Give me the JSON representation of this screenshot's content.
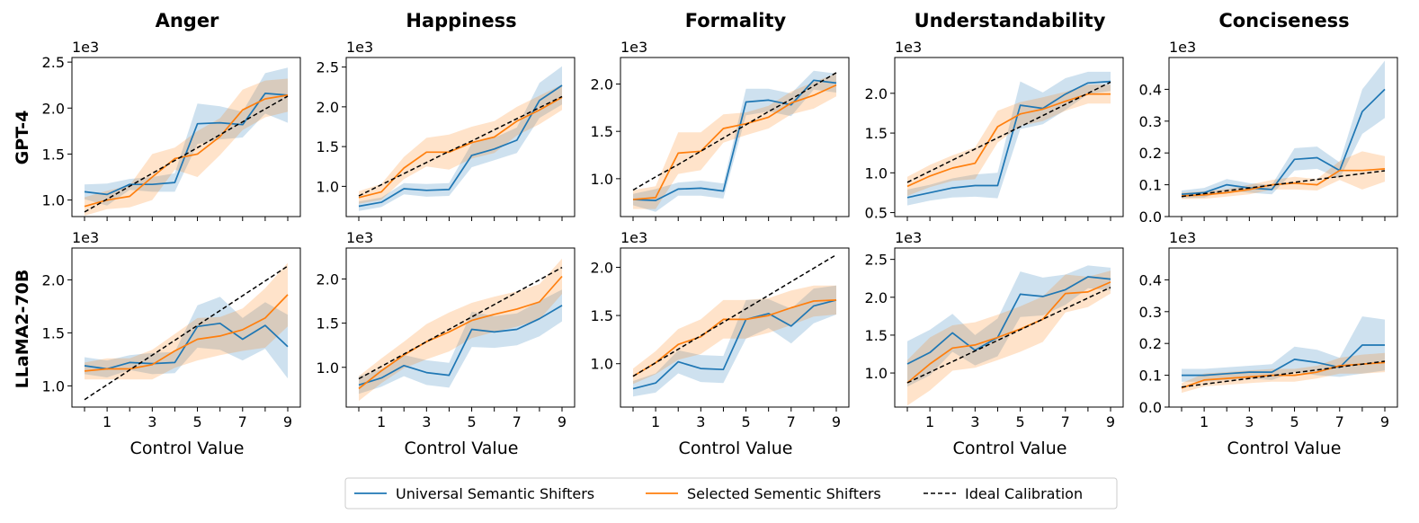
{
  "chart_data": {
    "type": "line",
    "columns": [
      "Anger",
      "Happiness",
      "Formality",
      "Understandability",
      "Conciseness"
    ],
    "rows": [
      "GPT-4",
      "LLaMA2-70B"
    ],
    "x": [
      0,
      1,
      2,
      3,
      4,
      5,
      6,
      7,
      8,
      9
    ],
    "xticks": [
      "1",
      "3",
      "5",
      "7",
      "9"
    ],
    "xlabel": "Control Value",
    "yscale_label": "1e3",
    "colors": {
      "universal": "#1f77b4",
      "selected": "#ff7f0e",
      "ideal": "#000000"
    },
    "legend": {
      "position": "bottom-center",
      "entries": [
        "Universal Semantic Shifters",
        "Selected Sementic Shifters",
        "Ideal Calibration"
      ]
    },
    "panels": [
      {
        "row": "GPT-4",
        "column": "Anger",
        "ylim": [
          0.82,
          2.55
        ],
        "yticks": [
          "1.0",
          "1.5",
          "2.0",
          "2.5"
        ],
        "universal": [
          1.09,
          1.06,
          1.17,
          1.17,
          1.19,
          1.83,
          1.84,
          1.82,
          2.16,
          2.14
        ],
        "universal_band": [
          0.08,
          0.12,
          0.06,
          0.08,
          0.1,
          0.22,
          0.18,
          0.14,
          0.22,
          0.3
        ],
        "selected": [
          0.93,
          1.0,
          1.04,
          1.25,
          1.45,
          1.5,
          1.69,
          1.98,
          2.1,
          2.14
        ],
        "selected_band": [
          0.1,
          0.1,
          0.12,
          0.25,
          0.12,
          0.25,
          0.2,
          0.22,
          0.2,
          0.18
        ],
        "ideal": [
          0.87,
          1.01,
          1.15,
          1.29,
          1.43,
          1.57,
          1.71,
          1.85,
          1.99,
          2.13
        ]
      },
      {
        "row": "GPT-4",
        "column": "Happiness",
        "ylim": [
          0.62,
          2.62
        ],
        "yticks": [
          "1.0",
          "1.5",
          "2.0",
          "2.5"
        ],
        "universal": [
          0.75,
          0.8,
          0.97,
          0.95,
          0.96,
          1.39,
          1.47,
          1.58,
          2.08,
          2.27
        ],
        "universal_band": [
          0.06,
          0.06,
          0.07,
          0.08,
          0.08,
          0.15,
          0.14,
          0.16,
          0.22,
          0.24
        ],
        "selected": [
          0.86,
          0.93,
          1.23,
          1.43,
          1.43,
          1.55,
          1.62,
          1.82,
          1.96,
          2.12
        ],
        "selected_band": [
          0.08,
          0.1,
          0.14,
          0.18,
          0.22,
          0.2,
          0.2,
          0.18,
          0.18,
          0.16
        ],
        "ideal": [
          0.88,
          1.02,
          1.16,
          1.3,
          1.44,
          1.57,
          1.71,
          1.85,
          1.99,
          2.13
        ]
      },
      {
        "row": "GPT-4",
        "column": "Formality",
        "ylim": [
          0.6,
          2.28
        ],
        "yticks": [
          "1.0",
          "1.5",
          "2.0"
        ],
        "universal": [
          0.78,
          0.77,
          0.89,
          0.9,
          0.87,
          1.81,
          1.83,
          1.78,
          2.04,
          2.01
        ],
        "universal_band": [
          0.06,
          0.12,
          0.07,
          0.08,
          0.08,
          0.14,
          0.12,
          0.12,
          0.1,
          0.1
        ],
        "selected": [
          0.78,
          0.8,
          1.27,
          1.29,
          1.53,
          1.58,
          1.65,
          1.8,
          1.88,
          1.99
        ],
        "selected_band": [
          0.1,
          0.12,
          0.22,
          0.2,
          0.15,
          0.12,
          0.12,
          0.12,
          0.14,
          0.12
        ],
        "ideal": [
          0.88,
          1.02,
          1.15,
          1.29,
          1.43,
          1.57,
          1.71,
          1.84,
          1.98,
          2.12
        ]
      },
      {
        "row": "GPT-4",
        "column": "Understandability",
        "ylim": [
          0.45,
          2.45
        ],
        "yticks": [
          "0.5",
          "1.0",
          "1.5",
          "2.0"
        ],
        "universal": [
          0.69,
          0.75,
          0.81,
          0.84,
          0.84,
          1.85,
          1.81,
          1.99,
          2.13,
          2.15
        ],
        "universal_band": [
          0.1,
          0.1,
          0.12,
          0.14,
          0.16,
          0.3,
          0.2,
          0.2,
          0.14,
          0.12
        ],
        "selected": [
          0.83,
          0.96,
          1.06,
          1.12,
          1.58,
          1.74,
          1.8,
          1.9,
          1.99,
          1.99
        ],
        "selected_band": [
          0.12,
          0.14,
          0.16,
          0.2,
          0.2,
          0.15,
          0.15,
          0.12,
          0.12,
          0.12
        ],
        "ideal": [
          0.88,
          1.02,
          1.16,
          1.3,
          1.44,
          1.58,
          1.72,
          1.86,
          2.0,
          2.14
        ]
      },
      {
        "row": "GPT-4",
        "column": "Conciseness",
        "ylim": [
          0.0,
          0.5
        ],
        "yticks": [
          "0.0",
          "0.1",
          "0.2",
          "0.3",
          "0.4"
        ],
        "universal": [
          0.07,
          0.075,
          0.1,
          0.09,
          0.085,
          0.18,
          0.185,
          0.145,
          0.33,
          0.4
        ],
        "universal_band": [
          0.012,
          0.015,
          0.018,
          0.015,
          0.015,
          0.035,
          0.035,
          0.025,
          0.07,
          0.09
        ],
        "selected": [
          0.065,
          0.068,
          0.075,
          0.085,
          0.1,
          0.105,
          0.1,
          0.145,
          0.145,
          0.15
        ],
        "selected_band": [
          0.01,
          0.012,
          0.012,
          0.015,
          0.015,
          0.02,
          0.018,
          0.03,
          0.06,
          0.04
        ],
        "ideal": [
          0.063,
          0.072,
          0.081,
          0.09,
          0.099,
          0.108,
          0.117,
          0.126,
          0.135,
          0.144
        ]
      },
      {
        "row": "LLaMA2-70B",
        "column": "Anger",
        "ylim": [
          0.8,
          2.3
        ],
        "yticks": [
          "1.0",
          "1.5",
          "2.0"
        ],
        "universal": [
          1.19,
          1.16,
          1.22,
          1.21,
          1.22,
          1.56,
          1.59,
          1.44,
          1.57,
          1.37
        ],
        "universal_band": [
          0.08,
          0.08,
          0.07,
          0.1,
          0.1,
          0.2,
          0.25,
          0.2,
          0.22,
          0.3
        ],
        "selected": [
          1.14,
          1.16,
          1.16,
          1.2,
          1.33,
          1.44,
          1.47,
          1.53,
          1.64,
          1.86
        ],
        "selected_band": [
          0.08,
          0.1,
          0.1,
          0.14,
          0.16,
          0.2,
          0.18,
          0.2,
          0.28,
          0.3
        ],
        "ideal": [
          0.87,
          1.01,
          1.15,
          1.29,
          1.43,
          1.57,
          1.71,
          1.85,
          1.99,
          2.13
        ]
      },
      {
        "row": "LLaMA2-70B",
        "column": "Happiness",
        "ylim": [
          0.55,
          2.35
        ],
        "yticks": [
          "1.0",
          "1.5",
          "2.0"
        ],
        "universal": [
          0.8,
          0.88,
          1.02,
          0.94,
          0.91,
          1.43,
          1.4,
          1.43,
          1.55,
          1.7
        ],
        "universal_band": [
          0.1,
          0.1,
          0.12,
          0.14,
          0.14,
          0.2,
          0.18,
          0.18,
          0.2,
          0.18
        ],
        "selected": [
          0.76,
          0.96,
          1.14,
          1.29,
          1.4,
          1.53,
          1.6,
          1.66,
          1.74,
          2.03
        ],
        "selected_band": [
          0.14,
          0.14,
          0.15,
          0.2,
          0.22,
          0.2,
          0.2,
          0.2,
          0.2,
          0.2
        ],
        "ideal": [
          0.87,
          1.01,
          1.15,
          1.29,
          1.43,
          1.57,
          1.71,
          1.85,
          1.99,
          2.13
        ]
      },
      {
        "row": "LLaMA2-70B",
        "column": "Formality",
        "ylim": [
          0.55,
          2.2
        ],
        "yticks": [
          "1.0",
          "1.5",
          "2.0"
        ],
        "universal": [
          0.74,
          0.8,
          1.02,
          0.95,
          0.94,
          1.46,
          1.52,
          1.39,
          1.6,
          1.66
        ],
        "universal_band": [
          0.08,
          0.1,
          0.12,
          0.14,
          0.14,
          0.2,
          0.15,
          0.18,
          0.18,
          0.15
        ],
        "selected": [
          0.87,
          1.01,
          1.2,
          1.28,
          1.46,
          1.46,
          1.5,
          1.58,
          1.65,
          1.66
        ],
        "selected_band": [
          0.08,
          0.12,
          0.16,
          0.18,
          0.2,
          0.2,
          0.18,
          0.18,
          0.16,
          0.15
        ],
        "ideal": [
          0.87,
          1.01,
          1.15,
          1.29,
          1.43,
          1.57,
          1.71,
          1.85,
          1.99,
          2.13
        ]
      },
      {
        "row": "LLaMA2-70B",
        "column": "Understandability",
        "ylim": [
          0.55,
          2.65
        ],
        "yticks": [
          "1.0",
          "1.5",
          "2.0",
          "2.5"
        ],
        "universal": [
          1.12,
          1.27,
          1.53,
          1.3,
          1.47,
          2.04,
          2.01,
          2.1,
          2.27,
          2.24
        ],
        "universal_band": [
          0.3,
          0.3,
          0.25,
          0.2,
          0.25,
          0.3,
          0.25,
          0.2,
          0.15,
          0.15
        ],
        "selected": [
          0.87,
          1.12,
          1.33,
          1.37,
          1.47,
          1.58,
          1.71,
          2.05,
          2.07,
          2.2
        ],
        "selected_band": [
          0.3,
          0.35,
          0.3,
          0.3,
          0.3,
          0.3,
          0.3,
          0.25,
          0.2,
          0.15
        ],
        "ideal": [
          0.87,
          1.01,
          1.15,
          1.29,
          1.43,
          1.57,
          1.71,
          1.85,
          1.99,
          2.13
        ]
      },
      {
        "row": "LLaMA2-70B",
        "column": "Conciseness",
        "ylim": [
          0.0,
          0.5
        ],
        "yticks": [
          "0.0",
          "0.1",
          "0.2",
          "0.3",
          "0.4"
        ],
        "universal": [
          0.1,
          0.1,
          0.105,
          0.11,
          0.11,
          0.15,
          0.14,
          0.125,
          0.195,
          0.195
        ],
        "universal_band": [
          0.02,
          0.02,
          0.02,
          0.02,
          0.025,
          0.04,
          0.04,
          0.03,
          0.09,
          0.08
        ],
        "selected": [
          0.06,
          0.085,
          0.09,
          0.095,
          0.1,
          0.1,
          0.11,
          0.13,
          0.135,
          0.14
        ],
        "selected_band": [
          0.015,
          0.02,
          0.02,
          0.02,
          0.02,
          0.02,
          0.02,
          0.025,
          0.03,
          0.03
        ],
        "ideal": [
          0.063,
          0.072,
          0.081,
          0.09,
          0.099,
          0.108,
          0.117,
          0.126,
          0.135,
          0.144
        ]
      }
    ]
  }
}
